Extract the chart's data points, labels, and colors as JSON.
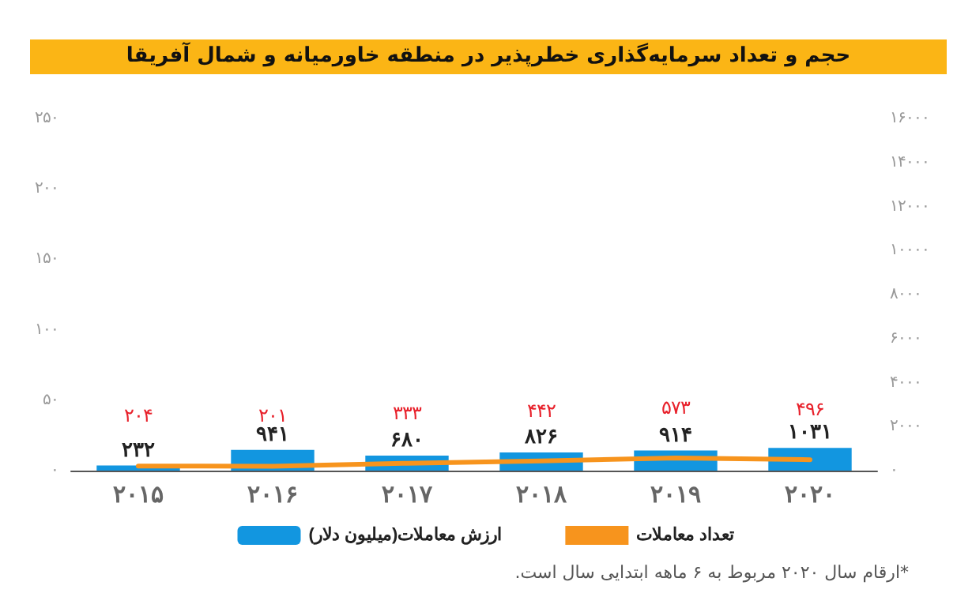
{
  "chart_data": {
    "type": "bar",
    "title": "حجم و تعداد سرمایه‌گذاری خطرپذیر در منطقه خاورمیانه و شمال آفریقا",
    "categories": [
      "۲۰۱۵",
      "۲۰۱۶",
      "۲۰۱۷",
      "۲۰۱۸",
      "۲۰۱۹",
      "۲۰۲۰"
    ],
    "series": [
      {
        "name": "ارزش معاملات(میلیون دلار)",
        "axis": "y2",
        "color": "#1296e0",
        "values": [
          232,
          941,
          680,
          826,
          914,
          1031
        ],
        "value_labels": [
          "۲۳۲",
          "۹۴۱",
          "۶۸۰",
          "۸۲۶",
          "۹۱۴",
          "۱۰۳۱"
        ]
      },
      {
        "name": "تعداد معاملات",
        "type": "line",
        "axis": "y2",
        "color": "#f7941d",
        "values": [
          204,
          201,
          333,
          442,
          573,
          496
        ],
        "value_labels": [
          "۲۰۴",
          "۲۰۱",
          "۳۳۳",
          "۴۴۲",
          "۵۷۳",
          "۴۹۶"
        ]
      }
    ],
    "ylim": [
      0,
      250
    ],
    "yticks": [
      {
        "value": 0,
        "label": "۰"
      },
      {
        "value": 50,
        "label": "۵۰"
      },
      {
        "value": 100,
        "label": "۱۰۰"
      },
      {
        "value": 150,
        "label": "۱۵۰"
      },
      {
        "value": 200,
        "label": "۲۰۰"
      },
      {
        "value": 250,
        "label": "۲۵۰"
      }
    ],
    "y2lim": [
      0,
      16000
    ],
    "y2ticks": [
      {
        "value": 0,
        "label": "۰"
      },
      {
        "value": 2000,
        "label": "۲۰۰۰"
      },
      {
        "value": 4000,
        "label": "۴۰۰۰"
      },
      {
        "value": 6000,
        "label": "۶۰۰۰"
      },
      {
        "value": 8000,
        "label": "۸۰۰۰"
      },
      {
        "value": 10000,
        "label": "۱۰۰۰۰"
      },
      {
        "value": 12000,
        "label": "۱۲۰۰۰"
      },
      {
        "value": 14000,
        "label": "۱۴۰۰۰"
      },
      {
        "value": 16000,
        "label": "۱۶۰۰۰"
      }
    ],
    "grid": false,
    "legend": "bottom",
    "marker": "none",
    "line_style": "solid",
    "annotations": [
      "*ارقام سال ۲۰۲۰ مربوط به ۶ ماهه ابتدایی سال است."
    ]
  }
}
